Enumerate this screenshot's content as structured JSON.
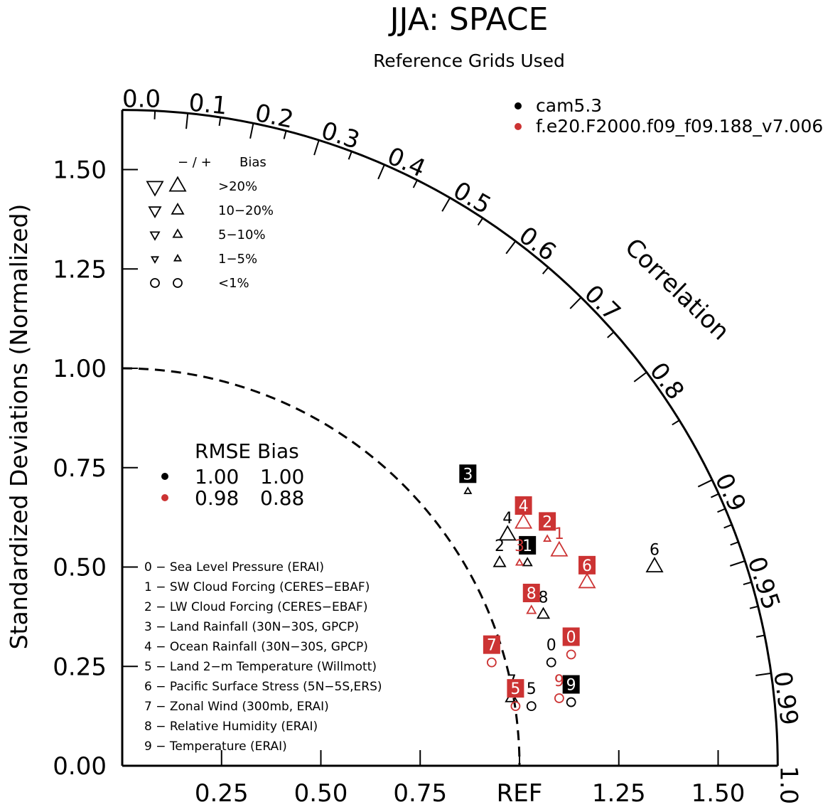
{
  "chart_data": {
    "type": "taylor",
    "title": "JJA: SPACE",
    "subtitle": "Reference Grids Used",
    "ylabel": "Standardized Deviations (Normalized)",
    "corr_label": "Correlation",
    "ref_label": "REF",
    "x_ticks": [
      "0.25",
      "0.50",
      "0.75",
      "",
      "1.25",
      "1.50"
    ],
    "y_ticks": [
      "0.00",
      "0.25",
      "0.50",
      "0.75",
      "1.00",
      "1.25",
      "1.50"
    ],
    "y_tick_values": [
      0,
      0.25,
      0.5,
      0.75,
      1.0,
      1.25,
      1.5
    ],
    "x_tick_values": [
      0.25,
      0.5,
      0.75,
      1.0,
      1.25,
      1.5
    ],
    "corr_ticks": [
      "0.0",
      "0.1",
      "0.2",
      "0.3",
      "0.4",
      "0.5",
      "0.6",
      "0.7",
      "0.8",
      "0.9",
      "0.95",
      "0.99",
      "1.0"
    ],
    "corr_tick_values": [
      0.0,
      0.1,
      0.2,
      0.3,
      0.4,
      0.5,
      0.6,
      0.7,
      0.8,
      0.9,
      0.95,
      0.99,
      1.0
    ],
    "max_std": 1.65,
    "ref_std": 1.0,
    "series": [
      {
        "name": "cam5.3",
        "color": "#000000"
      },
      {
        "name": "f.e20.F2000.f09_f09.188_v7.006",
        "color": "#cc3333"
      }
    ],
    "bias_legend": {
      "header_sign": "− / +",
      "header_label": "Bias",
      "rows": [
        "&gt;20%",
        "10−20%",
        "5−10%",
        "1−5%",
        "&lt;1%"
      ]
    },
    "stats": {
      "header": "RMSE Bias",
      "rows": [
        {
          "color": "#000000",
          "rmse": "1.00",
          "bias": "1.00"
        },
        {
          "color": "#cc3333",
          "rmse": "0.98",
          "bias": "0.88"
        }
      ]
    },
    "variables": [
      "0 − Sea Level Pressure (ERAI)",
      "1 − SW Cloud Forcing (CERES−EBAF)",
      "2 − LW Cloud Forcing (CERES−EBAF)",
      "3 − Land Rainfall (30N−30S, GPCP)",
      "4 − Ocean Rainfall (30N−30S, GPCP)",
      "5 − Land 2−m Temperature (Willmott)",
      "6 − Pacific Surface Stress (5N−5S,ERS)",
      "7 − Zonal Wind (300mb, ERAI)",
      "8 − Relative Humidity (ERAI)",
      "9 − Temperature (ERAI)"
    ],
    "points": [
      {
        "series": 0,
        "label": "0",
        "x": 1.08,
        "y": 0.26,
        "marker": "circle",
        "boxed": false
      },
      {
        "series": 0,
        "label": "1",
        "x": 1.02,
        "y": 0.51,
        "marker": "tri-up-small",
        "boxed": true
      },
      {
        "series": 0,
        "label": "2",
        "x": 0.95,
        "y": 0.51,
        "marker": "tri-up-mid",
        "boxed": false
      },
      {
        "series": 0,
        "label": "3",
        "x": 0.87,
        "y": 0.69,
        "marker": "tri-up-tiny",
        "boxed": true
      },
      {
        "series": 0,
        "label": "4",
        "x": 0.97,
        "y": 0.58,
        "marker": "tri-up-large",
        "boxed": false
      },
      {
        "series": 0,
        "label": "5",
        "x": 1.03,
        "y": 0.15,
        "marker": "circle",
        "boxed": false
      },
      {
        "series": 0,
        "label": "6",
        "x": 1.34,
        "y": 0.5,
        "marker": "tri-up-large",
        "boxed": false
      },
      {
        "series": 0,
        "label": "7",
        "x": 0.98,
        "y": 0.17,
        "marker": "tri-up-mid",
        "boxed": false
      },
      {
        "series": 0,
        "label": "8",
        "x": 1.06,
        "y": 0.38,
        "marker": "tri-up-mid",
        "boxed": false
      },
      {
        "series": 0,
        "label": "9",
        "x": 1.13,
        "y": 0.16,
        "marker": "circle",
        "boxed": true
      },
      {
        "series": 1,
        "label": "0",
        "x": 1.13,
        "y": 0.28,
        "marker": "circle",
        "boxed": true
      },
      {
        "series": 1,
        "label": "1",
        "x": 1.1,
        "y": 0.54,
        "marker": "tri-up-large",
        "boxed": false
      },
      {
        "series": 1,
        "label": "2",
        "x": 1.07,
        "y": 0.57,
        "marker": "tri-up-tiny",
        "boxed": true
      },
      {
        "series": 1,
        "label": "3",
        "x": 1.0,
        "y": 0.51,
        "marker": "tri-up-tiny",
        "boxed": false
      },
      {
        "series": 1,
        "label": "4",
        "x": 1.01,
        "y": 0.61,
        "marker": "tri-up-large",
        "boxed": true
      },
      {
        "series": 1,
        "label": "5",
        "x": 0.99,
        "y": 0.15,
        "marker": "circle",
        "boxed": true
      },
      {
        "series": 1,
        "label": "6",
        "x": 1.17,
        "y": 0.46,
        "marker": "tri-up-large",
        "boxed": true
      },
      {
        "series": 1,
        "label": "7",
        "x": 0.93,
        "y": 0.26,
        "marker": "circle",
        "boxed": true
      },
      {
        "series": 1,
        "label": "8",
        "x": 1.03,
        "y": 0.39,
        "marker": "tri-up-small",
        "boxed": true
      },
      {
        "series": 1,
        "label": "9",
        "x": 1.1,
        "y": 0.17,
        "marker": "circle",
        "boxed": false
      }
    ]
  }
}
